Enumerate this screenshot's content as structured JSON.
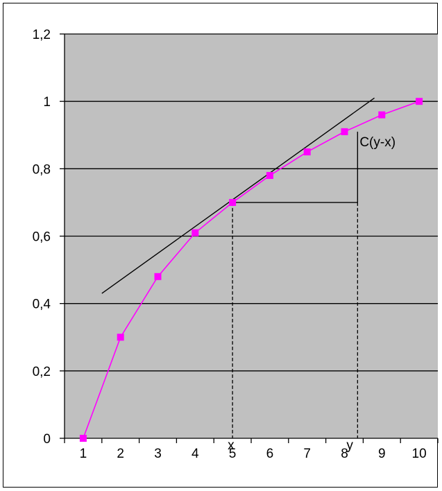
{
  "chart_data": {
    "type": "line",
    "title": "",
    "xlabel": "",
    "ylabel": "",
    "categories": [
      "1",
      "2",
      "3",
      "4",
      "5",
      "6",
      "7",
      "8",
      "9",
      "10"
    ],
    "y_ticks": [
      "0",
      "0,2",
      "0,4",
      "0,6",
      "0,8",
      "1",
      "1,2"
    ],
    "ylim": [
      0,
      1.2
    ],
    "grid": true,
    "legend": "none",
    "series": [
      {
        "values": [
          0.0,
          0.3,
          0.48,
          0.61,
          0.7,
          0.78,
          0.85,
          0.91,
          0.96,
          1.0
        ],
        "color": "#ff00ff",
        "marker": "square"
      }
    ],
    "tangent_line": {
      "x_start": 1.5,
      "y_start": 0.43,
      "x_end": 8.8,
      "y_end": 1.01,
      "color": "#000000"
    },
    "annotations": {
      "x_point": {
        "label": "x",
        "x": 5,
        "y": 0.7
      },
      "y_point": {
        "label": "y",
        "x": 8.35,
        "y": 0.7
      },
      "bracket_top_y": 0.91,
      "bracket_label": "C(y-x)"
    },
    "plot_background": "#c0c0c0"
  }
}
